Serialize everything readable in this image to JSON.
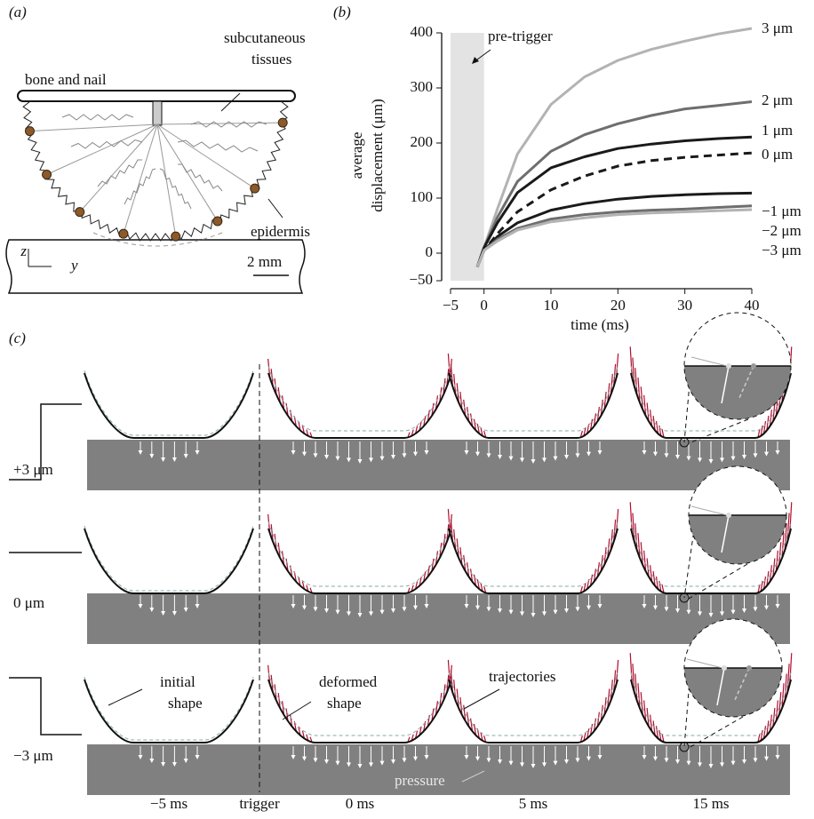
{
  "panel_a": {
    "label": "(a)",
    "bone": "bone and nail",
    "tissues": [
      "subcutaneous",
      "tissues"
    ],
    "epidermis": "epidermis",
    "axis_z": "z",
    "axis_y": "y",
    "scale": "2 mm"
  },
  "chart_data": {
    "type": "line",
    "panel_label": "(b)",
    "ylabel": [
      "average",
      "displacement (μm)"
    ],
    "xlabel": "time (ms)",
    "x": [
      -1,
      0,
      2,
      5,
      10,
      15,
      20,
      25,
      30,
      35,
      40
    ],
    "series": [
      {
        "name": "3 μm",
        "color": "#b3b3b3",
        "values": [
          -25,
          10,
          80,
          180,
          270,
          320,
          350,
          370,
          385,
          398,
          408
        ]
      },
      {
        "name": "2 μm",
        "color": "#6e6e6e",
        "values": [
          -25,
          10,
          65,
          130,
          185,
          215,
          235,
          250,
          262,
          268,
          275
        ]
      },
      {
        "name": "1 μm",
        "color": "#1a1a1a",
        "values": [
          -25,
          10,
          55,
          110,
          155,
          175,
          190,
          198,
          204,
          208,
          211
        ]
      },
      {
        "name": "0 μm",
        "color": "#1a1a1a",
        "dash": true,
        "values": [
          -25,
          5,
          35,
          75,
          115,
          140,
          158,
          168,
          174,
          178,
          182
        ]
      },
      {
        "name": "−1 μm",
        "color": "#1a1a1a",
        "values": [
          -25,
          5,
          30,
          55,
          78,
          90,
          98,
          103,
          106,
          108,
          109
        ]
      },
      {
        "name": "−2 μm",
        "color": "#6e6e6e",
        "values": [
          -25,
          5,
          25,
          45,
          62,
          70,
          75,
          78,
          80,
          83,
          86
        ]
      },
      {
        "name": "−3 μm",
        "color": "#b3b3b3",
        "values": [
          -25,
          5,
          22,
          42,
          57,
          64,
          70,
          73,
          75,
          77,
          79
        ]
      }
    ],
    "shade": {
      "xlim": [
        -5,
        0
      ],
      "label": "pre-trigger",
      "color": "#e3e3e3"
    },
    "xlim": [
      -5,
      40
    ],
    "xticks": [
      {
        "value": -5,
        "label": "−5"
      },
      0,
      10,
      20,
      30,
      40
    ],
    "ylim": [
      -50,
      400
    ],
    "yticks": [
      {
        "value": -50,
        "label": "−50"
      },
      0,
      100,
      200,
      300,
      400
    ]
  },
  "panel_c": {
    "label": "(c)",
    "rows": [
      "+3 μm",
      "0 μm",
      "−3 μm"
    ],
    "columns": [
      "−5 ms",
      "0 ms",
      "5 ms",
      "15 ms"
    ],
    "trigger": "trigger",
    "annotations": {
      "initial_shape": [
        "initial",
        "shape"
      ],
      "deformed_shape": [
        "deformed",
        "shape"
      ],
      "trajectories": "trajectories",
      "pressure": "pressure"
    }
  }
}
